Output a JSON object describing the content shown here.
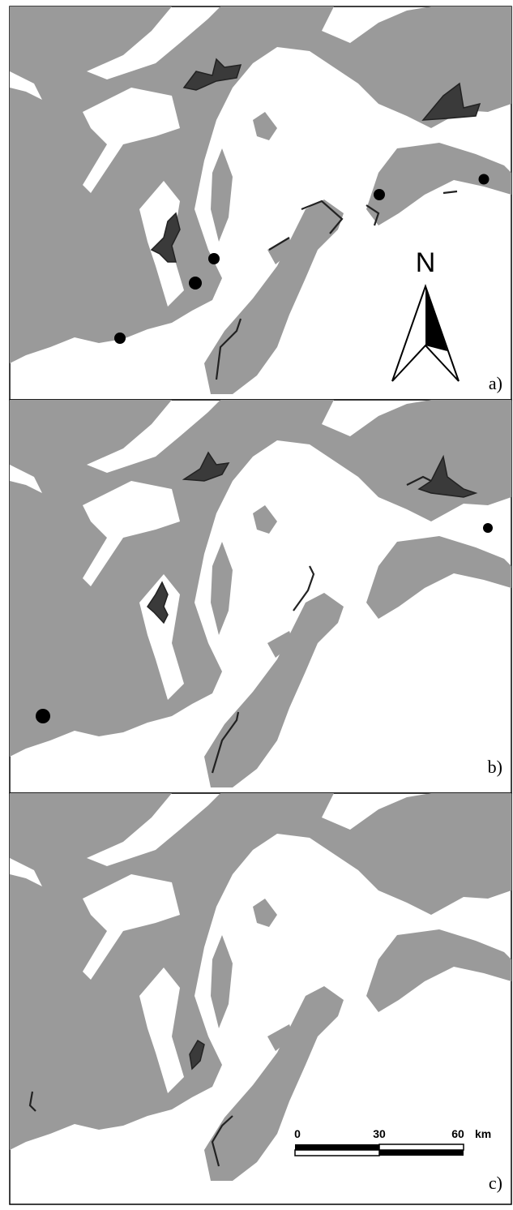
{
  "panels": [
    {
      "label": "a)"
    },
    {
      "label": "b)"
    },
    {
      "label": "c)"
    }
  ],
  "north_arrow": {
    "label": "N"
  },
  "scale_bar": {
    "ticks": [
      "0",
      "30",
      "60"
    ],
    "unit": "km"
  }
}
